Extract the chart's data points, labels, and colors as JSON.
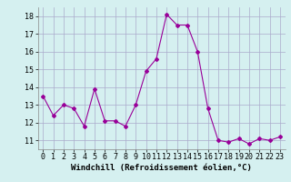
{
  "x": [
    0,
    1,
    2,
    3,
    4,
    5,
    6,
    7,
    8,
    9,
    10,
    11,
    12,
    13,
    14,
    15,
    16,
    17,
    18,
    19,
    20,
    21,
    22,
    23
  ],
  "y": [
    13.5,
    12.4,
    13.0,
    12.8,
    11.8,
    13.9,
    12.1,
    12.1,
    11.8,
    13.0,
    14.9,
    15.6,
    18.1,
    17.5,
    17.5,
    16.0,
    12.8,
    11.0,
    10.9,
    11.1,
    10.8,
    11.1,
    11.0,
    11.2
  ],
  "xlim": [
    -0.5,
    23.5
  ],
  "ylim": [
    10.5,
    18.5
  ],
  "yticks": [
    11,
    12,
    13,
    14,
    15,
    16,
    17,
    18
  ],
  "xticks": [
    0,
    1,
    2,
    3,
    4,
    5,
    6,
    7,
    8,
    9,
    10,
    11,
    12,
    13,
    14,
    15,
    16,
    17,
    18,
    19,
    20,
    21,
    22,
    23
  ],
  "xlabel": "Windchill (Refroidissement éolien,°C)",
  "line_color": "#990099",
  "marker": "D",
  "marker_size": 2.0,
  "bg_color": "#d5f0f0",
  "grid_color": "#aaaacc",
  "xlabel_fontsize": 6.5,
  "tick_fontsize": 6.0
}
